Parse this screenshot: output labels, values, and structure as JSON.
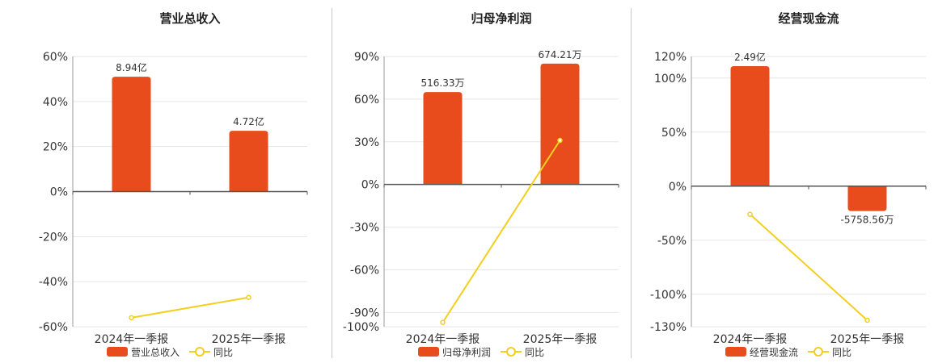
{
  "legend": {
    "yoy_label": "同比"
  },
  "colors": {
    "bar": "#E84C1C",
    "line": "#F2CF1E",
    "grid": "#e6e6e6",
    "axis": "#555555",
    "text": "#333333"
  },
  "chart_data": [
    {
      "type": "bar",
      "title": "营业总收入",
      "categories": [
        "2024年一季报",
        "2025年一季报"
      ],
      "series": [
        {
          "name": "营业总收入",
          "values": [
            51,
            27
          ],
          "data_labels": [
            "8.94亿",
            "4.72亿"
          ]
        },
        {
          "name": "同比",
          "type": "line",
          "values": [
            -56,
            -47
          ]
        }
      ],
      "ylim": [
        -60,
        60
      ],
      "yticks": [
        -60,
        -40,
        -20,
        0,
        20,
        40,
        60
      ],
      "ytick_labels": [
        "-60%",
        "-40%",
        "-20%",
        "0%",
        "20%",
        "40%",
        "60%"
      ],
      "grid": true,
      "legend_position": "bottom"
    },
    {
      "type": "bar",
      "title": "归母净利润",
      "categories": [
        "2024年一季报",
        "2025年一季报"
      ],
      "series": [
        {
          "name": "归母净利润",
          "values": [
            65,
            85
          ],
          "data_labels": [
            "516.33万",
            "674.21万"
          ]
        },
        {
          "name": "同比",
          "type": "line",
          "values": [
            -97,
            31
          ]
        }
      ],
      "ylim": [
        -100,
        90
      ],
      "yticks": [
        -100,
        -90,
        -60,
        -30,
        0,
        30,
        60,
        90
      ],
      "ytick_labels": [
        "-100%",
        "-90%",
        "-60%",
        "-30%",
        "0%",
        "30%",
        "60%",
        "90%"
      ],
      "grid": true,
      "legend_position": "bottom"
    },
    {
      "type": "bar",
      "title": "经营现金流",
      "categories": [
        "2024年一季报",
        "2025年一季报"
      ],
      "series": [
        {
          "name": "经营现金流",
          "values": [
            111,
            -23
          ],
          "data_labels": [
            "2.49亿",
            "-5758.56万"
          ]
        },
        {
          "name": "同比",
          "type": "line",
          "values": [
            -26,
            -124
          ]
        }
      ],
      "ylim": [
        -130,
        120
      ],
      "yticks": [
        -130,
        -100,
        -50,
        0,
        50,
        100,
        120
      ],
      "ytick_labels": [
        "-130%",
        "-100%",
        "-50%",
        "0%",
        "50%",
        "100%",
        "120%"
      ],
      "grid": true,
      "legend_position": "bottom"
    }
  ]
}
